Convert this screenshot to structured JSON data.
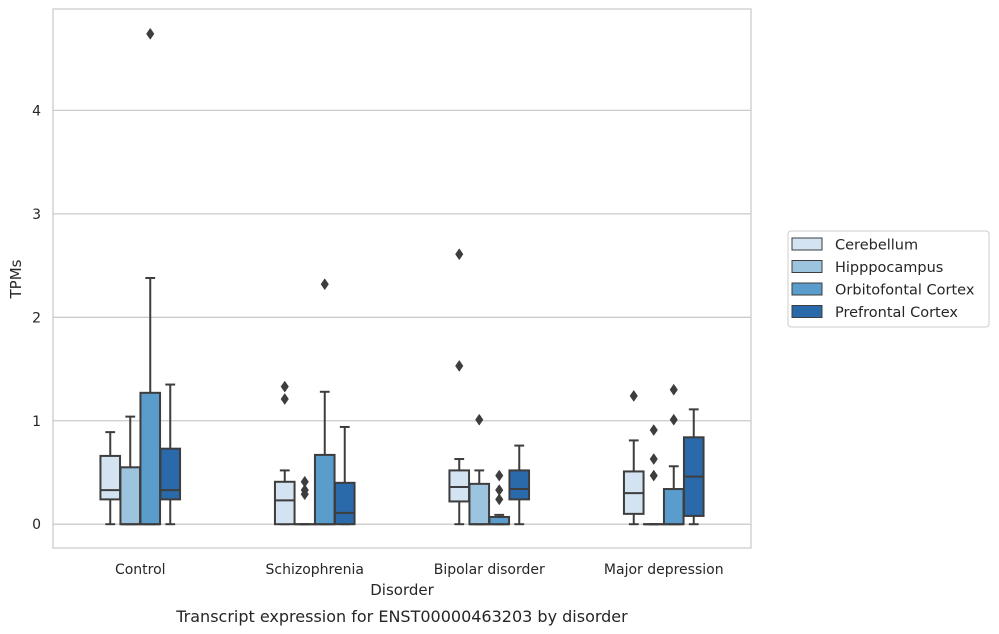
{
  "chart_data": {
    "type": "box",
    "title": "Transcript expression for ENST00000463203 by disorder",
    "xlabel": "Disorder",
    "ylabel": "TPMs",
    "ylim": [
      -0.23,
      4.98
    ],
    "yticks": [
      0,
      1,
      2,
      3,
      4
    ],
    "grid": true,
    "legend_position": "right",
    "categories": [
      "Control",
      "Schizophrenia",
      "Bipolar disorder",
      "Major depression"
    ],
    "series": [
      {
        "name": "Cerebellum",
        "color": "#d4e3f1",
        "boxes": [
          {
            "whisker_low": 0,
            "q1": 0.24,
            "median": 0.33,
            "q3": 0.66,
            "whisker_high": 0.89,
            "outliers": []
          },
          {
            "whisker_low": 0,
            "q1": 0,
            "median": 0.23,
            "q3": 0.41,
            "whisker_high": 0.52,
            "outliers": [
              1.33,
              1.21
            ]
          },
          {
            "whisker_low": 0,
            "q1": 0.22,
            "median": 0.36,
            "q3": 0.52,
            "whisker_high": 0.63,
            "outliers": [
              2.61,
              1.53
            ]
          },
          {
            "whisker_low": 0,
            "q1": 0.1,
            "median": 0.3,
            "q3": 0.51,
            "whisker_high": 0.81,
            "outliers": [
              1.24
            ]
          }
        ]
      },
      {
        "name": "Hipppocampus",
        "color": "#9cc4df",
        "boxes": [
          {
            "whisker_low": 0,
            "q1": 0,
            "median": 0,
            "q3": 0.55,
            "whisker_high": 1.04,
            "outliers": []
          },
          {
            "whisker_low": 0,
            "q1": 0,
            "median": 0,
            "q3": 0,
            "whisker_high": 0,
            "outliers": [
              0.41,
              0.33,
              0.29
            ]
          },
          {
            "whisker_low": 0,
            "q1": 0,
            "median": 0,
            "q3": 0.39,
            "whisker_high": 0.52,
            "outliers": [
              1.01
            ]
          },
          {
            "whisker_low": 0,
            "q1": 0,
            "median": 0,
            "q3": 0,
            "whisker_high": 0,
            "outliers": [
              0.91,
              0.63,
              0.47
            ]
          }
        ]
      },
      {
        "name": "Orbitofontal Cortex",
        "color": "#5a9ccb",
        "boxes": [
          {
            "whisker_low": 0,
            "q1": 0,
            "median": 0,
            "q3": 1.27,
            "whisker_high": 2.38,
            "outliers": [
              4.74
            ]
          },
          {
            "whisker_low": 0,
            "q1": 0,
            "median": 0,
            "q3": 0.67,
            "whisker_high": 1.28,
            "outliers": [
              2.32
            ]
          },
          {
            "whisker_low": 0,
            "q1": 0,
            "median": 0,
            "q3": 0.07,
            "whisker_high": 0.09,
            "outliers": [
              0.47,
              0.33,
              0.24
            ]
          },
          {
            "whisker_low": 0,
            "q1": 0,
            "median": 0,
            "q3": 0.34,
            "whisker_high": 0.56,
            "outliers": [
              1.3,
              1.01
            ]
          }
        ]
      },
      {
        "name": "Prefrontal Cortex",
        "color": "#2a6aaa",
        "boxes": [
          {
            "whisker_low": 0,
            "q1": 0.24,
            "median": 0.33,
            "q3": 0.73,
            "whisker_high": 1.35,
            "outliers": []
          },
          {
            "whisker_low": 0,
            "q1": 0,
            "median": 0.11,
            "q3": 0.4,
            "whisker_high": 0.94,
            "outliers": []
          },
          {
            "whisker_low": 0,
            "q1": 0.24,
            "median": 0.34,
            "q3": 0.52,
            "whisker_high": 0.76,
            "outliers": []
          },
          {
            "whisker_low": 0,
            "q1": 0.08,
            "median": 0.46,
            "q3": 0.84,
            "whisker_high": 1.11,
            "outliers": []
          }
        ]
      }
    ]
  }
}
